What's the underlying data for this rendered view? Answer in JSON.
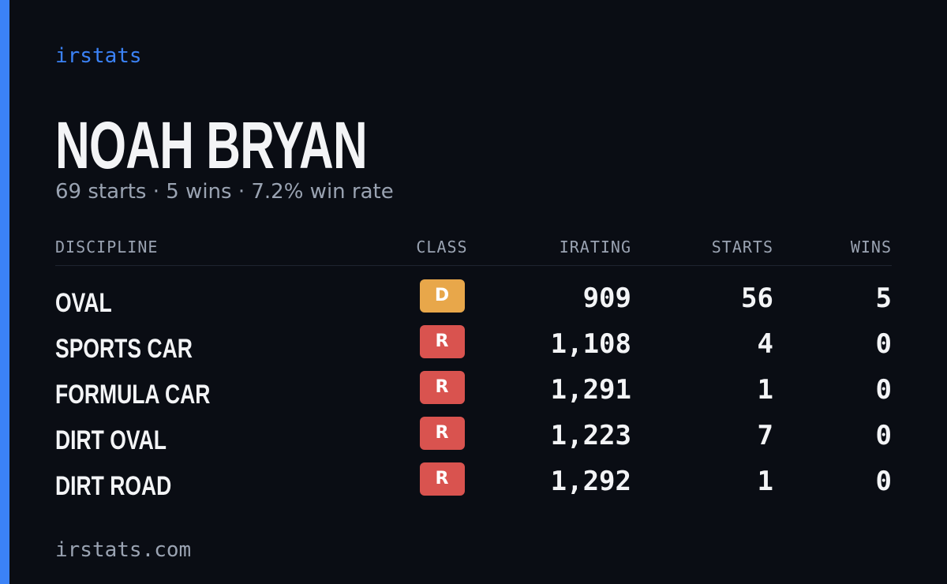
{
  "brand": "irstats",
  "driver": {
    "name": "NOAH BRYAN",
    "summary": "69 starts · 5 wins · 7.2% win rate"
  },
  "table": {
    "headers": [
      "DISCIPLINE",
      "CLASS",
      "IRATING",
      "STARTS",
      "WINS"
    ],
    "rows": [
      [
        "OVAL",
        "D",
        "909",
        "56",
        "5"
      ],
      [
        "SPORTS CAR",
        "R",
        "1,108",
        "4",
        "0"
      ],
      [
        "FORMULA CAR",
        "R",
        "1,291",
        "1",
        "0"
      ],
      [
        "DIRT OVAL",
        "R",
        "1,223",
        "7",
        "0"
      ],
      [
        "DIRT ROAD",
        "R",
        "1,292",
        "1",
        "0"
      ]
    ]
  },
  "footer": "irstats.com"
}
